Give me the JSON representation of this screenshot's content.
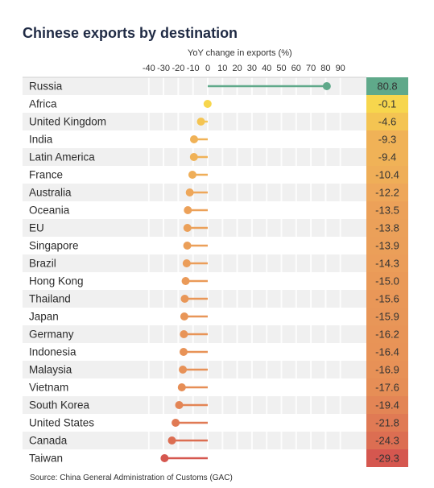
{
  "chart_data": {
    "type": "lollipop",
    "title": "Chinese exports by destination",
    "xlabel": "YoY change in exports (%)",
    "xlim": [
      -40,
      90
    ],
    "xticks": [
      -40,
      -30,
      -20,
      -10,
      0,
      10,
      20,
      30,
      40,
      50,
      60,
      70,
      80,
      90
    ],
    "categories": [
      "Russia",
      "Africa",
      "United Kingdom",
      "India",
      "Latin America",
      "France",
      "Australia",
      "Oceania",
      "EU",
      "Singapore",
      "Brazil",
      "Hong Kong",
      "Thailand",
      "Japan",
      "Germany",
      "Indonesia",
      "Malaysia",
      "Vietnam",
      "South Korea",
      "United States",
      "Canada",
      "Taiwan"
    ],
    "values": [
      80.8,
      -0.1,
      -4.6,
      -9.3,
      -9.4,
      -10.4,
      -12.2,
      -13.5,
      -13.8,
      -13.9,
      -14.3,
      -15.0,
      -15.6,
      -15.9,
      -16.2,
      -16.4,
      -16.9,
      -17.6,
      -19.4,
      -21.8,
      -24.3,
      -29.3
    ],
    "value_labels": [
      "80.8",
      "-0.1",
      "-4.6",
      "-9.3",
      "-9.4",
      "-10.4",
      "-12.2",
      "-13.5",
      "-13.8",
      "-13.9",
      "-14.3",
      "-15.0",
      "-15.6",
      "-15.9",
      "-16.2",
      "-16.4",
      "-16.9",
      "-17.6",
      "-19.4",
      "-21.8",
      "-24.3",
      "-29.3"
    ],
    "grid": true,
    "colors": {
      "positive": "#5fa98a",
      "near_zero": "#f7d64d",
      "mid": "#eea85a",
      "low": "#d5574f"
    }
  },
  "source": "Source: China General Administration of Customs (GAC)"
}
